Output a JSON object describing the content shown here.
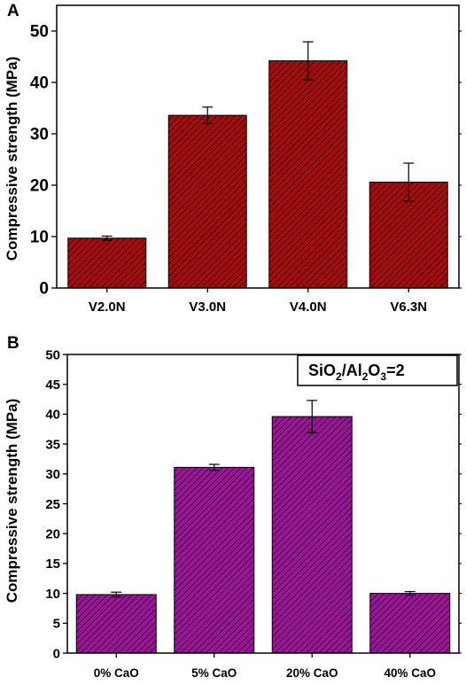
{
  "chart_data": [
    {
      "type": "bar",
      "panel_label": "A",
      "categories": [
        "V2.0N",
        "V3.0N",
        "V4.0N",
        "V6.3N"
      ],
      "values": [
        9.7,
        33.6,
        44.2,
        20.6
      ],
      "errors": [
        0.4,
        1.6,
        3.7,
        3.7
      ],
      "ylabel": "Compressive strength (MPa)",
      "ylim": [
        0,
        55
      ],
      "yticks": [
        0,
        10,
        20,
        30,
        40,
        50
      ],
      "bar_color": "#a50d0d",
      "hatch": "diagonal"
    },
    {
      "type": "bar",
      "panel_label": "B",
      "categories": [
        "0% CaO",
        "5% CaO",
        "20% CaO",
        "40% CaO"
      ],
      "values": [
        9.8,
        31.1,
        39.6,
        10.0
      ],
      "errors": [
        0.4,
        0.5,
        2.7,
        0.3
      ],
      "ylabel": "Compressive strength (MPa)",
      "ylim": [
        0,
        50
      ],
      "yticks": [
        0,
        5,
        10,
        15,
        20,
        25,
        30,
        35,
        40,
        45,
        50
      ],
      "bar_color": "#9b1696",
      "hatch": "diagonal",
      "annotation": {
        "parts": [
          {
            "text": "SiO",
            "sub": false
          },
          {
            "text": "2",
            "sub": true
          },
          {
            "text": "/Al",
            "sub": false
          },
          {
            "text": "2",
            "sub": true
          },
          {
            "text": "O",
            "sub": false
          },
          {
            "text": "3",
            "sub": true
          },
          {
            "text": "=2",
            "sub": false
          }
        ]
      }
    }
  ]
}
